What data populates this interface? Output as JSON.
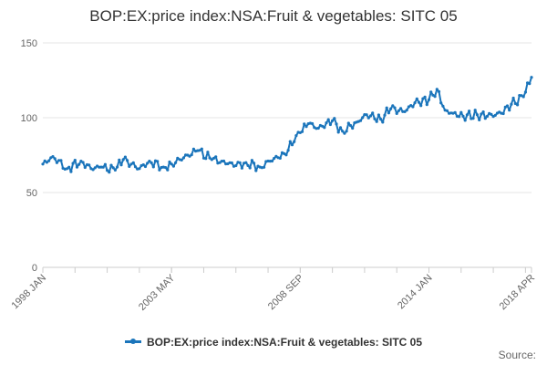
{
  "chart": {
    "title": "BOP:EX:price index:NSA:Fruit & vegetables: SITC 05",
    "legend_label": "BOP:EX:price index:NSA:Fruit & vegetables: SITC 05",
    "source_label": "Source:",
    "line_color": "#1b75bb",
    "grid_color": "#e6e6e6"
  },
  "chart_data": {
    "type": "line",
    "title": "BOP:EX:price index:NSA:Fruit & vegetables: SITC 05",
    "xlabel": "",
    "ylabel": "",
    "ylim": [
      0,
      150
    ],
    "yticks": [
      0,
      50,
      100,
      150
    ],
    "x_tick_labels": [
      "1998 JAN",
      "2003 MAY",
      "2008 SEP",
      "2014 JAN",
      "2018 APR"
    ],
    "x_tick_index": [
      0,
      64,
      128,
      192,
      243
    ],
    "grid": true,
    "legend_position": "bottom",
    "series": [
      {
        "name": "BOP:EX:price index:NSA:Fruit & vegetables: SITC 05",
        "x_start": "1998 JAN",
        "x_end": "2018 APR",
        "frequency": "monthly",
        "anchor_values": [
          {
            "x": "1998 JAN",
            "y": 69
          },
          {
            "x": "1998 JUN",
            "y": 74
          },
          {
            "x": "1999 JAN",
            "y": 66
          },
          {
            "x": "1999 AUG",
            "y": 71
          },
          {
            "x": "2000 JAN",
            "y": 66
          },
          {
            "x": "2000 JUN",
            "y": 67
          },
          {
            "x": "2001 JAN",
            "y": 65
          },
          {
            "x": "2001 MAY",
            "y": 72
          },
          {
            "x": "2002 JAN",
            "y": 66
          },
          {
            "x": "2002 JUN",
            "y": 71
          },
          {
            "x": "2003 JAN",
            "y": 67
          },
          {
            "x": "2003 MAY",
            "y": 69
          },
          {
            "x": "2004 JAN",
            "y": 75
          },
          {
            "x": "2004 JUN",
            "y": 78
          },
          {
            "x": "2005 JAN",
            "y": 72
          },
          {
            "x": "2005 JUN",
            "y": 71
          },
          {
            "x": "2006 JAN",
            "y": 68
          },
          {
            "x": "2006 JUN",
            "y": 70
          },
          {
            "x": "2007 JAN",
            "y": 67
          },
          {
            "x": "2007 JUN",
            "y": 71
          },
          {
            "x": "2008 JAN",
            "y": 76
          },
          {
            "x": "2008 JUN",
            "y": 84
          },
          {
            "x": "2008 SEP",
            "y": 90
          },
          {
            "x": "2009 JAN",
            "y": 96
          },
          {
            "x": "2009 JUN",
            "y": 93
          },
          {
            "x": "2010 JAN",
            "y": 98
          },
          {
            "x": "2010 JUN",
            "y": 91
          },
          {
            "x": "2011 JAN",
            "y": 97
          },
          {
            "x": "2011 JUN",
            "y": 102
          },
          {
            "x": "2012 JAN",
            "y": 99
          },
          {
            "x": "2012 JUN",
            "y": 106
          },
          {
            "x": "2013 JAN",
            "y": 104
          },
          {
            "x": "2013 JUN",
            "y": 110
          },
          {
            "x": "2014 JAN",
            "y": 112
          },
          {
            "x": "2014 MAY",
            "y": 119
          },
          {
            "x": "2014 SEP",
            "y": 105
          },
          {
            "x": "2015 JAN",
            "y": 103
          },
          {
            "x": "2015 JUN",
            "y": 101
          },
          {
            "x": "2016 JAN",
            "y": 102
          },
          {
            "x": "2016 JUN",
            "y": 101
          },
          {
            "x": "2017 JAN",
            "y": 103
          },
          {
            "x": "2017 JUN",
            "y": 109
          },
          {
            "x": "2017 DEC",
            "y": 114
          },
          {
            "x": "2018 APR",
            "y": 127
          }
        ]
      }
    ]
  }
}
